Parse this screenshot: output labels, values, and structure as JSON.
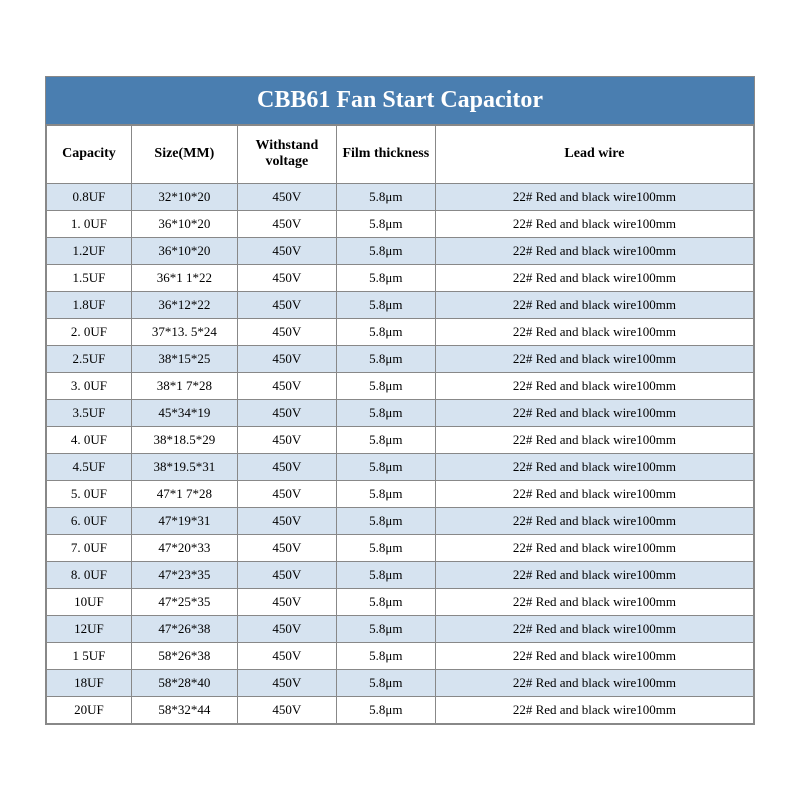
{
  "title": "CBB61 Fan Start Capacitor",
  "colors": {
    "header_bg": "#4a7eb0",
    "header_text": "#ffffff",
    "row_odd_bg": "#d6e3f0",
    "row_even_bg": "#ffffff",
    "border": "#888888",
    "text": "#000000"
  },
  "table": {
    "type": "table",
    "columns": [
      "Capacity",
      "Size(MM)",
      "Withstand voltage",
      "Film thickness",
      "Lead wire"
    ],
    "column_widths_pct": [
      12,
      15,
      14,
      14,
      45
    ],
    "header_fontsize": 14,
    "cell_fontsize": 13,
    "rows": [
      [
        "0.8UF",
        "32*10*20",
        "450V",
        "5.8μm",
        "22# Red and black wire100mm"
      ],
      [
        "1. 0UF",
        "36*10*20",
        "450V",
        "5.8μm",
        "22# Red and black wire100mm"
      ],
      [
        "1.2UF",
        "36*10*20",
        "450V",
        "5.8μm",
        "22# Red and black wire100mm"
      ],
      [
        "1.5UF",
        "36*1 1*22",
        "450V",
        "5.8μm",
        "22# Red and black wire100mm"
      ],
      [
        "1.8UF",
        "36*12*22",
        "450V",
        "5.8μm",
        "22# Red and black wire100mm"
      ],
      [
        "2. 0UF",
        "37*13. 5*24",
        "450V",
        "5.8μm",
        "22# Red and black wire100mm"
      ],
      [
        "2.5UF",
        "38*15*25",
        "450V",
        "5.8μm",
        "22# Red and black wire100mm"
      ],
      [
        "3. 0UF",
        "38*1 7*28",
        "450V",
        "5.8μm",
        "22# Red and black wire100mm"
      ],
      [
        "3.5UF",
        "45*34*19",
        "450V",
        "5.8μm",
        "22# Red and black wire100mm"
      ],
      [
        "4. 0UF",
        "38*18.5*29",
        "450V",
        "5.8μm",
        "22# Red and black wire100mm"
      ],
      [
        "4.5UF",
        "38*19.5*31",
        "450V",
        "5.8μm",
        "22# Red and black wire100mm"
      ],
      [
        "5. 0UF",
        "47*1 7*28",
        "450V",
        "5.8μm",
        "22# Red and black wire100mm"
      ],
      [
        "6. 0UF",
        "47*19*31",
        "450V",
        "5.8μm",
        "22# Red and black wire100mm"
      ],
      [
        "7. 0UF",
        "47*20*33",
        "450V",
        "5.8μm",
        "22# Red and black wire100mm"
      ],
      [
        "8. 0UF",
        "47*23*35",
        "450V",
        "5.8μm",
        "22# Red and black wire100mm"
      ],
      [
        "10UF",
        "47*25*35",
        "450V",
        "5.8μm",
        "22# Red and black wire100mm"
      ],
      [
        "12UF",
        "47*26*38",
        "450V",
        "5.8μm",
        "22# Red and black wire100mm"
      ],
      [
        "1 5UF",
        "58*26*38",
        "450V",
        "5.8μm",
        "22# Red and black wire100mm"
      ],
      [
        "18UF",
        "58*28*40",
        "450V",
        "5.8μm",
        "22# Red and black wire100mm"
      ],
      [
        "20UF",
        "58*32*44",
        "450V",
        "5.8μm",
        "22# Red and black wire100mm"
      ]
    ]
  }
}
